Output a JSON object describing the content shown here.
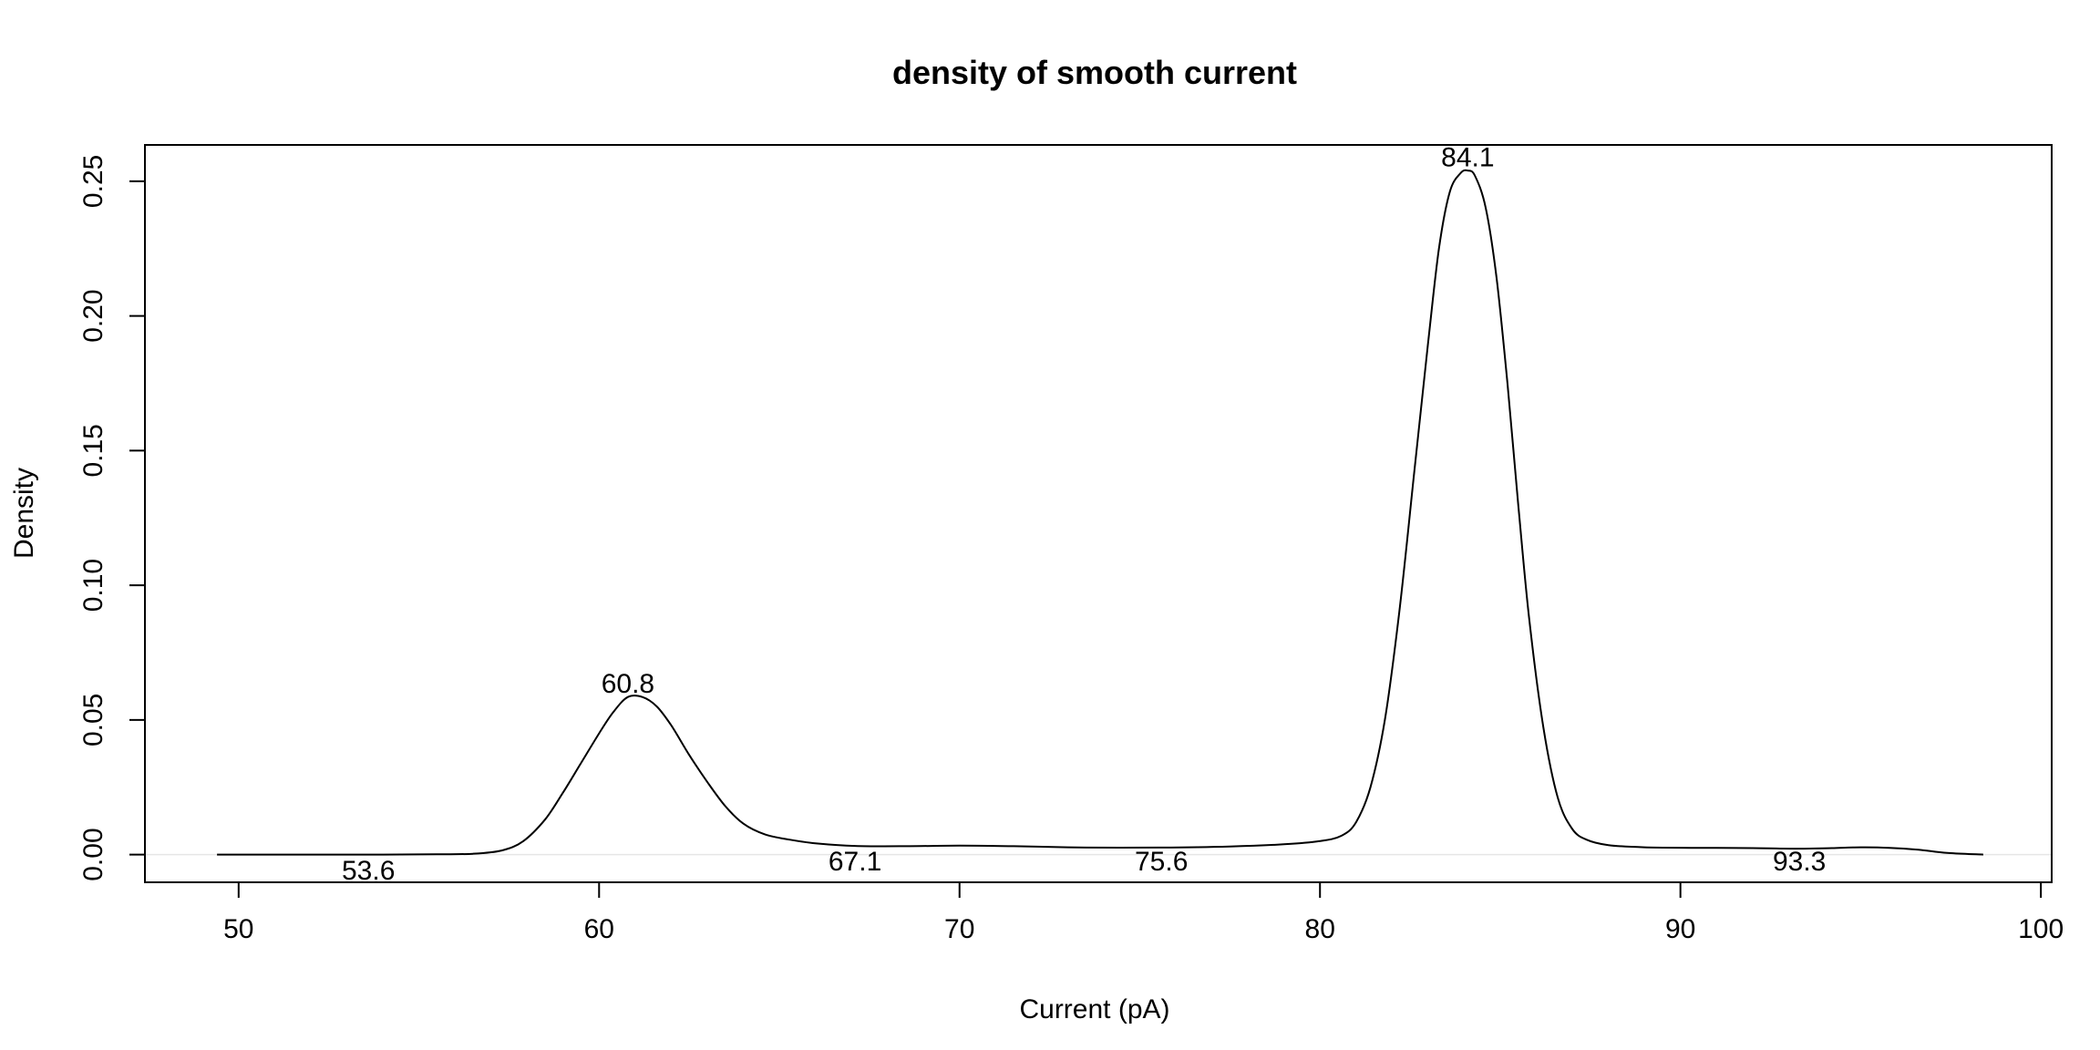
{
  "chart_data": {
    "type": "line",
    "title": "density of smooth current",
    "xlabel": "Current (pA)",
    "ylabel": "Density",
    "xlim": [
      47.4,
      100.3
    ],
    "ylim": [
      -0.0103,
      0.2635
    ],
    "x_ticks": [
      50,
      60,
      70,
      80,
      90,
      100
    ],
    "y_ticks": [
      0.0,
      0.05,
      0.1,
      0.15,
      0.2,
      0.25
    ],
    "x_tick_labels": [
      "50",
      "60",
      "70",
      "80",
      "90",
      "100"
    ],
    "y_tick_labels": [
      "0.00",
      "0.05",
      "0.10",
      "0.15",
      "0.20",
      "0.25"
    ],
    "grid": false,
    "zero_line": true,
    "series": [
      {
        "x": [
          49.4,
          52.0,
          54.0,
          55.5,
          56.5,
          57.3,
          57.9,
          58.5,
          59.0,
          59.5,
          60.0,
          60.4,
          60.8,
          61.2,
          61.6,
          62.0,
          62.5,
          63.0,
          63.5,
          64.0,
          64.6,
          65.3,
          66.0,
          67.1,
          68.5,
          70.0,
          71.5,
          73.5,
          75.6,
          77.5,
          79.0,
          80.0,
          80.6,
          81.0,
          81.4,
          81.8,
          82.2,
          82.6,
          83.0,
          83.3,
          83.6,
          83.9,
          84.1,
          84.3,
          84.6,
          84.9,
          85.2,
          85.5,
          85.8,
          86.2,
          86.6,
          87.0,
          87.4,
          88.0,
          89.0,
          90.5,
          92.0,
          93.3,
          94.2,
          95.0,
          95.8,
          96.6,
          97.4,
          98.4
        ],
        "y": [
          0.0,
          0.0,
          0.0,
          0.0001,
          0.0003,
          0.0015,
          0.005,
          0.013,
          0.023,
          0.034,
          0.045,
          0.053,
          0.0585,
          0.0585,
          0.055,
          0.048,
          0.037,
          0.027,
          0.018,
          0.0115,
          0.0075,
          0.0055,
          0.0042,
          0.0032,
          0.0031,
          0.0033,
          0.0031,
          0.0026,
          0.0026,
          0.003,
          0.0038,
          0.005,
          0.007,
          0.012,
          0.025,
          0.05,
          0.09,
          0.14,
          0.19,
          0.225,
          0.246,
          0.253,
          0.254,
          0.252,
          0.24,
          0.214,
          0.175,
          0.13,
          0.088,
          0.047,
          0.021,
          0.0095,
          0.0055,
          0.0035,
          0.0027,
          0.0025,
          0.0024,
          0.0022,
          0.0024,
          0.0027,
          0.0025,
          0.0018,
          0.0006,
          0.0
        ]
      }
    ],
    "annotations": [
      {
        "text": "53.6",
        "x": 53.6,
        "y": -0.0055
      },
      {
        "text": "60.8",
        "x": 60.8,
        "y": 0.0638
      },
      {
        "text": "67.1",
        "x": 67.1,
        "y": -0.0022
      },
      {
        "text": "75.6",
        "x": 75.6,
        "y": -0.0022
      },
      {
        "text": "84.1",
        "x": 84.1,
        "y": 0.2593
      },
      {
        "text": "93.3",
        "x": 93.3,
        "y": -0.0022
      }
    ]
  }
}
